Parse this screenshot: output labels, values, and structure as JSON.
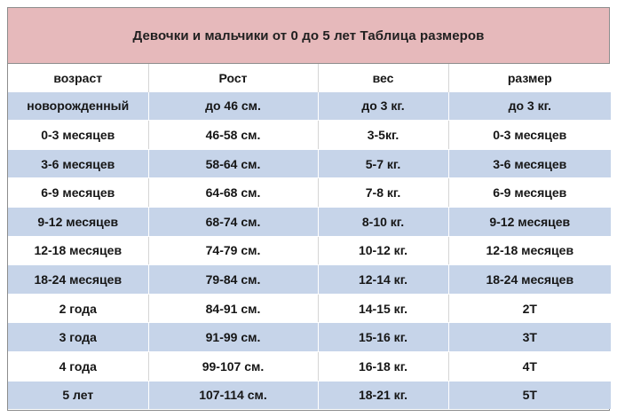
{
  "title": "Девочки и мальчики от 0 до 5 лет  Таблица размеров",
  "columns": [
    "возраст",
    "Рост",
    "вес",
    "размер"
  ],
  "rows": [
    [
      "новорожденный",
      "до 46 см.",
      "до 3 кг.",
      "до 3 кг."
    ],
    [
      "0-3 месяцев",
      "46-58 см.",
      "3-5кг.",
      "0-3 месяцев"
    ],
    [
      "3-6 месяцев",
      "58-64 см.",
      "5-7 кг.",
      "3-6 месяцев"
    ],
    [
      "6-9 месяцев",
      "64-68 см.",
      "7-8 кг.",
      "6-9 месяцев"
    ],
    [
      "9-12 месяцев",
      "68-74 см.",
      "8-10 кг.",
      "9-12 месяцев"
    ],
    [
      "12-18 месяцев",
      "74-79 см.",
      "10-12 кг.",
      "12-18 месяцев"
    ],
    [
      "18-24 месяцев",
      "79-84 см.",
      "12-14 кг.",
      "18-24 месяцев"
    ],
    [
      "2 года",
      "84-91 см.",
      "14-15 кг.",
      "2Т"
    ],
    [
      "3 года",
      "91-99 см.",
      "15-16 кг.",
      "3Т"
    ],
    [
      "4 года",
      "99-107 см.",
      "16-18 кг.",
      "4Т"
    ],
    [
      "5 лет",
      "107-114 см.",
      "18-21 кг.",
      "5Т"
    ]
  ],
  "colors": {
    "title_background": "#e6b9bb",
    "striped_row": "#c6d4e9",
    "plain_row": "#ffffff"
  }
}
